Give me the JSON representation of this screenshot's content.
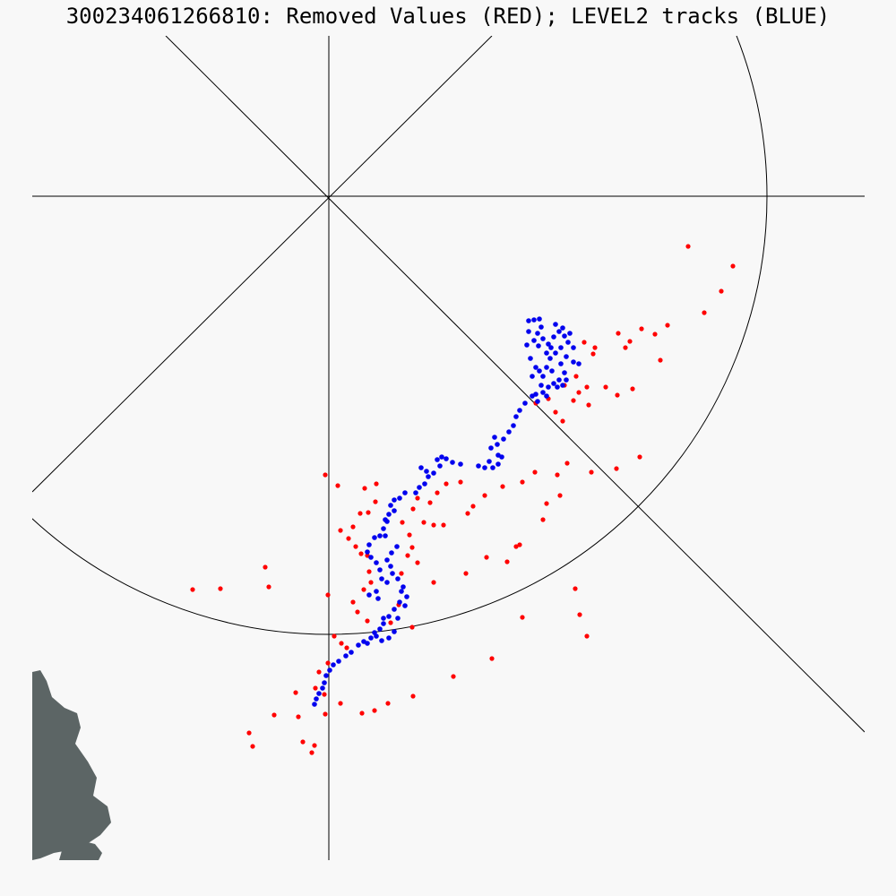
{
  "title": "300234061266810:  Removed Values (RED); LEVEL2 tracks (BLUE)",
  "colors": {
    "background": "#f8f8f8",
    "grid": "#000000",
    "land": "#5c6565",
    "removed": "#ff0000",
    "track": "#0000ee"
  },
  "legend": {
    "removed_label": "Removed Values (RED)",
    "track_label": "LEVEL2 tracks (BLUE)"
  }
}
